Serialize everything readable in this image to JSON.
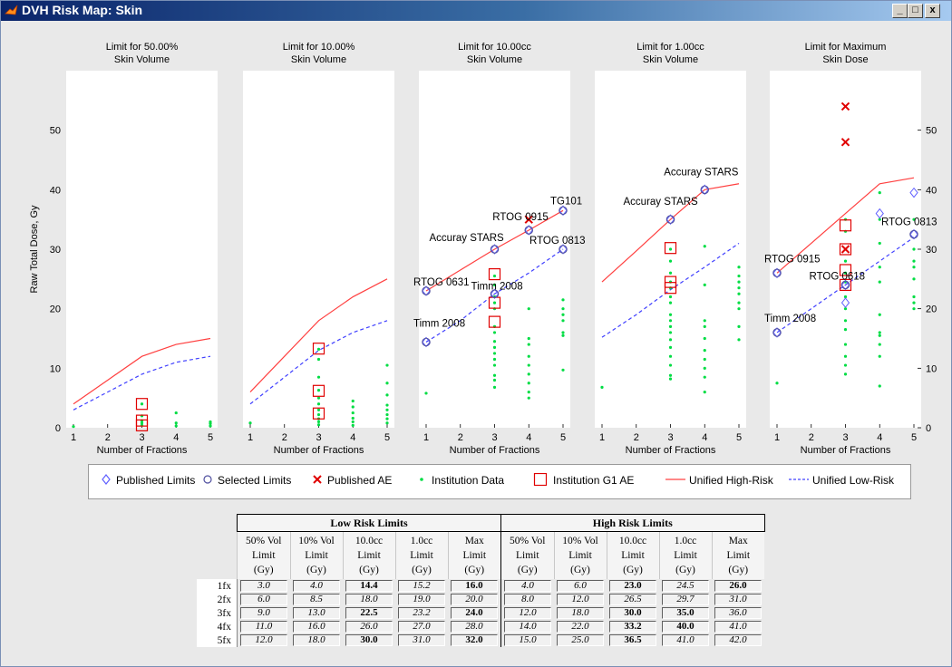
{
  "window": {
    "title": "DVH Risk Map: Skin",
    "buttons": [
      "_",
      "□",
      "x"
    ]
  },
  "chart_data": {
    "type": "line",
    "ylabel": "Raw Total Dose, Gy",
    "xlabel": "Number of Fractions",
    "x": [
      1,
      2,
      3,
      4,
      5
    ],
    "ylim": [
      0,
      60
    ],
    "yticks": [
      0,
      10,
      20,
      30,
      40,
      50
    ],
    "left_tick_labels": [
      "0",
      "10",
      "20",
      "30",
      "40",
      "50"
    ],
    "right_tick_labels": [
      "0",
      "10",
      "20",
      "30",
      "40",
      "50"
    ],
    "panels": [
      {
        "title": "Limit for 50.00%\nSkin Volume",
        "high_risk": [
          4.0,
          8.0,
          12.0,
          14.0,
          15.0
        ],
        "low_risk": [
          3.0,
          6.0,
          9.0,
          11.0,
          12.0
        ],
        "published_limits": [],
        "selected_limits": [],
        "published_ae": [],
        "institution_data": [
          [
            1,
            0.2
          ],
          [
            3,
            0.4
          ],
          [
            3,
            0.8
          ],
          [
            3,
            1.2
          ],
          [
            3,
            2.0
          ],
          [
            3,
            4.0
          ],
          [
            4,
            0.3
          ],
          [
            4,
            0.8
          ],
          [
            4,
            2.5
          ],
          [
            5,
            0.3
          ],
          [
            5,
            0.7
          ],
          [
            5,
            1.0
          ]
        ],
        "institution_g1_ae": [
          [
            3,
            4.0
          ],
          [
            3,
            1.2
          ],
          [
            3,
            0.4
          ]
        ],
        "labels": []
      },
      {
        "title": "Limit for 10.00%\nSkin Volume",
        "high_risk": [
          6.0,
          12.0,
          18.0,
          22.0,
          25.0
        ],
        "low_risk": [
          4.0,
          8.5,
          13.0,
          16.0,
          18.0
        ],
        "published_limits": [],
        "selected_limits": [],
        "published_ae": [],
        "institution_data": [
          [
            1,
            0.8
          ],
          [
            3,
            0.5
          ],
          [
            3,
            1.0
          ],
          [
            3,
            1.5
          ],
          [
            3,
            2.2
          ],
          [
            3,
            3.0
          ],
          [
            3,
            4.0
          ],
          [
            3,
            5.0
          ],
          [
            3,
            6.3
          ],
          [
            3,
            8.5
          ],
          [
            3,
            11.5
          ],
          [
            3,
            13.2
          ],
          [
            4,
            0.4
          ],
          [
            4,
            1.0
          ],
          [
            4,
            1.6
          ],
          [
            4,
            2.5
          ],
          [
            4,
            3.5
          ],
          [
            4,
            4.5
          ],
          [
            5,
            0.8
          ],
          [
            5,
            1.5
          ],
          [
            5,
            2.2
          ],
          [
            5,
            3.0
          ],
          [
            5,
            3.8
          ],
          [
            5,
            5.5
          ],
          [
            5,
            7.5
          ],
          [
            5,
            10.5
          ]
        ],
        "institution_g1_ae": [
          [
            3,
            13.3
          ],
          [
            3,
            6.2
          ],
          [
            3,
            2.4
          ]
        ],
        "labels": []
      },
      {
        "title": "Limit for 10.00cc\nSkin Volume",
        "high_risk": [
          23.0,
          26.5,
          30.0,
          33.2,
          36.5
        ],
        "low_risk": [
          14.4,
          18.0,
          22.5,
          26.0,
          30.0
        ],
        "published_limits": [
          [
            1,
            23.0
          ],
          [
            1,
            14.4
          ],
          [
            3,
            30.0
          ],
          [
            3,
            22.5
          ],
          [
            4,
            33.2
          ],
          [
            5,
            36.5
          ],
          [
            5,
            30.0
          ]
        ],
        "selected_limits": [
          [
            1,
            23.0
          ],
          [
            1,
            14.4
          ],
          [
            3,
            30.0
          ],
          [
            3,
            22.5
          ],
          [
            4,
            33.2
          ],
          [
            5,
            36.5
          ],
          [
            5,
            30.0
          ]
        ],
        "published_ae": [
          [
            4,
            35.0
          ]
        ],
        "institution_data": [
          [
            1,
            5.8
          ],
          [
            3,
            6.8
          ],
          [
            3,
            8.0
          ],
          [
            3,
            8.8
          ],
          [
            3,
            10.5
          ],
          [
            3,
            11.5
          ],
          [
            3,
            12.5
          ],
          [
            3,
            13.5
          ],
          [
            3,
            14.5
          ],
          [
            3,
            16.0
          ],
          [
            3,
            17.0
          ],
          [
            3,
            20.0
          ],
          [
            3,
            21.0
          ],
          [
            3,
            22.0
          ],
          [
            3,
            24.0
          ],
          [
            3,
            25.5
          ],
          [
            4,
            5.0
          ],
          [
            4,
            6.0
          ],
          [
            4,
            7.5
          ],
          [
            4,
            9.0
          ],
          [
            4,
            10.5
          ],
          [
            4,
            12.0
          ],
          [
            4,
            14.0
          ],
          [
            4,
            15.0
          ],
          [
            4,
            20.0
          ],
          [
            5,
            9.7
          ],
          [
            5,
            15.5
          ],
          [
            5,
            16.0
          ],
          [
            5,
            18.0
          ],
          [
            5,
            19.0
          ],
          [
            5,
            20.0
          ],
          [
            5,
            21.5
          ]
        ],
        "institution_g1_ae": [
          [
            3,
            25.8
          ],
          [
            3,
            21.0
          ],
          [
            3,
            17.8
          ]
        ],
        "labels": [
          "TG101",
          "RTOG 0915",
          "Accuray STARS",
          "RTOG 0813",
          "RTOG 0631",
          "Timm 2008",
          "Timm 2008"
        ]
      },
      {
        "title": "Limit for 1.00cc\nSkin Volume",
        "high_risk": [
          24.5,
          29.7,
          35.0,
          40.0,
          41.0
        ],
        "low_risk": [
          15.2,
          19.0,
          23.2,
          27.0,
          31.0
        ],
        "published_limits": [
          [
            3,
            35.0
          ],
          [
            4,
            40.0
          ]
        ],
        "selected_limits": [
          [
            3,
            35.0
          ],
          [
            4,
            40.0
          ]
        ],
        "published_ae": [],
        "institution_data": [
          [
            1,
            6.8
          ],
          [
            3,
            8.2
          ],
          [
            3,
            8.8
          ],
          [
            3,
            10.5
          ],
          [
            3,
            12.0
          ],
          [
            3,
            13.5
          ],
          [
            3,
            14.8
          ],
          [
            3,
            16.0
          ],
          [
            3,
            17.0
          ],
          [
            3,
            18.0
          ],
          [
            3,
            19.0
          ],
          [
            3,
            21.0
          ],
          [
            3,
            22.0
          ],
          [
            3,
            23.5
          ],
          [
            3,
            24.5
          ],
          [
            3,
            26.0
          ],
          [
            3,
            28.0
          ],
          [
            3,
            30.0
          ],
          [
            4,
            6.0
          ],
          [
            4,
            8.5
          ],
          [
            4,
            10.0
          ],
          [
            4,
            11.5
          ],
          [
            4,
            13.0
          ],
          [
            4,
            15.0
          ],
          [
            4,
            17.0
          ],
          [
            4,
            18.0
          ],
          [
            4,
            24.0
          ],
          [
            4,
            30.5
          ],
          [
            5,
            14.8
          ],
          [
            5,
            17.0
          ],
          [
            5,
            20.0
          ],
          [
            5,
            21.0
          ],
          [
            5,
            22.5
          ],
          [
            5,
            23.5
          ],
          [
            5,
            24.5
          ],
          [
            5,
            25.5
          ],
          [
            5,
            27.0
          ]
        ],
        "institution_g1_ae": [
          [
            3,
            30.2
          ],
          [
            3,
            24.5
          ],
          [
            3,
            23.5
          ]
        ],
        "labels": [
          "Accuray STARS",
          "Accuray STARS"
        ]
      },
      {
        "title": "Limit for Maximum\nSkin Dose",
        "high_risk": [
          26.0,
          31.0,
          36.0,
          41.0,
          42.0
        ],
        "low_risk": [
          16.0,
          20.0,
          24.0,
          28.0,
          32.0
        ],
        "published_limits": [
          [
            1,
            26.0
          ],
          [
            1,
            16.0
          ],
          [
            3,
            24.0
          ],
          [
            3,
            21.0
          ],
          [
            4,
            36.0
          ],
          [
            5,
            39.5
          ],
          [
            5,
            32.5
          ]
        ],
        "selected_limits": [
          [
            1,
            26.0
          ],
          [
            1,
            16.0
          ],
          [
            3,
            24.0
          ],
          [
            5,
            32.5
          ]
        ],
        "published_ae": [
          [
            3,
            54.0
          ],
          [
            3,
            48.0
          ],
          [
            3,
            30.0
          ]
        ],
        "institution_data": [
          [
            1,
            7.5
          ],
          [
            3,
            9.0
          ],
          [
            3,
            10.5
          ],
          [
            3,
            12.0
          ],
          [
            3,
            14.0
          ],
          [
            3,
            16.5
          ],
          [
            3,
            18.0
          ],
          [
            3,
            20.0
          ],
          [
            3,
            22.0
          ],
          [
            3,
            24.5
          ],
          [
            3,
            26.0
          ],
          [
            3,
            28.0
          ],
          [
            3,
            30.0
          ],
          [
            3,
            33.0
          ],
          [
            3,
            35.0
          ],
          [
            4,
            7.0
          ],
          [
            4,
            12.0
          ],
          [
            4,
            14.0
          ],
          [
            4,
            15.5
          ],
          [
            4,
            16.0
          ],
          [
            4,
            19.0
          ],
          [
            4,
            24.5
          ],
          [
            4,
            27.0
          ],
          [
            4,
            31.0
          ],
          [
            4,
            35.0
          ],
          [
            4,
            39.5
          ],
          [
            5,
            20.0
          ],
          [
            5,
            21.0
          ],
          [
            5,
            22.0
          ],
          [
            5,
            25.0
          ],
          [
            5,
            27.0
          ],
          [
            5,
            28.0
          ],
          [
            5,
            30.0
          ],
          [
            5,
            35.0
          ]
        ],
        "institution_g1_ae": [
          [
            3,
            34.0
          ],
          [
            3,
            30.0
          ],
          [
            3,
            26.5
          ],
          [
            3,
            24.0
          ]
        ],
        "labels": [
          "RTOG 0915",
          "RTOG 0618",
          "RTOG 0813",
          "Timm 2008"
        ]
      }
    ],
    "legend": [
      {
        "marker": "diamond",
        "label": "Published Limits"
      },
      {
        "marker": "circle",
        "label": "Selected Limits"
      },
      {
        "marker": "x",
        "label": "Published AE"
      },
      {
        "marker": "dot",
        "label": "Institution Data"
      },
      {
        "marker": "square",
        "label": "Institution G1 AE"
      },
      {
        "marker": "solid-line",
        "label": "Unified High-Risk"
      },
      {
        "marker": "dashed-line",
        "label": "Unified Low-Risk"
      }
    ],
    "colors": {
      "high_risk": "#ff4040",
      "low_risk": "#4040ff",
      "published_limits": "#6060ff",
      "selected_limits": "#5050a0",
      "published_ae": "#e00000",
      "institution_data": "#00dd44",
      "institution_g1_ae": "#e00000",
      "panel_bg": "#ffffff",
      "figure_bg": "#e9e9e9"
    }
  },
  "table": {
    "groups": [
      "Low Risk Limits",
      "High Risk Limits"
    ],
    "col_headers": [
      "50% Vol\nLimit\n(Gy)",
      "10% Vol\nLimit\n(Gy)",
      "10.0cc\nLimit\n(Gy)",
      "1.0cc\nLimit\n(Gy)",
      "Max\nLimit\n(Gy)",
      "50% Vol\nLimit\n(Gy)",
      "10% Vol\nLimit\n(Gy)",
      "10.0cc\nLimit\n(Gy)",
      "1.0cc\nLimit\n(Gy)",
      "Max\nLimit\n(Gy)"
    ],
    "rows": [
      {
        "label": "1fx",
        "values": [
          "3.0",
          "4.0",
          "14.4",
          "15.2",
          "16.0",
          "4.0",
          "6.0",
          "23.0",
          "24.5",
          "26.0"
        ],
        "bold": [
          false,
          false,
          true,
          false,
          true,
          false,
          false,
          true,
          false,
          true
        ]
      },
      {
        "label": "2fx",
        "values": [
          "6.0",
          "8.5",
          "18.0",
          "19.0",
          "20.0",
          "8.0",
          "12.0",
          "26.5",
          "29.7",
          "31.0"
        ],
        "bold": [
          false,
          false,
          false,
          false,
          false,
          false,
          false,
          false,
          false,
          false
        ]
      },
      {
        "label": "3fx",
        "values": [
          "9.0",
          "13.0",
          "22.5",
          "23.2",
          "24.0",
          "12.0",
          "18.0",
          "30.0",
          "35.0",
          "36.0"
        ],
        "bold": [
          false,
          false,
          true,
          false,
          true,
          false,
          false,
          true,
          true,
          false
        ]
      },
      {
        "label": "4fx",
        "values": [
          "11.0",
          "16.0",
          "26.0",
          "27.0",
          "28.0",
          "14.0",
          "22.0",
          "33.2",
          "40.0",
          "41.0"
        ],
        "bold": [
          false,
          false,
          false,
          false,
          false,
          false,
          false,
          true,
          true,
          false
        ]
      },
      {
        "label": "5fx",
        "values": [
          "12.0",
          "18.0",
          "30.0",
          "31.0",
          "32.0",
          "15.0",
          "25.0",
          "36.5",
          "41.0",
          "42.0"
        ],
        "bold": [
          false,
          false,
          true,
          false,
          true,
          false,
          false,
          true,
          false,
          false
        ]
      }
    ]
  }
}
